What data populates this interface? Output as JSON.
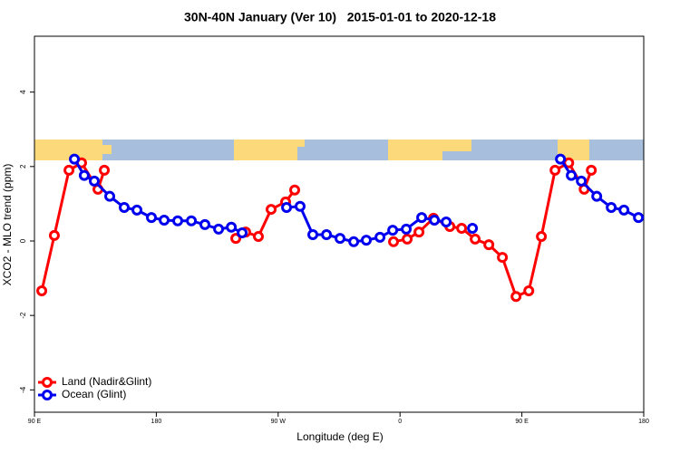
{
  "chart_data": {
    "type": "line",
    "title": "30N-40N January (Ver 10)   2015-01-01 to 2020-12-18",
    "x_label": "Longitude (deg E)",
    "y_label": "XCO2 - MLO trend (ppm)",
    "xlim": [
      90,
      540
    ],
    "xticks": [
      {
        "value": 90,
        "label": "90 E"
      },
      {
        "value": 180,
        "label": "180"
      },
      {
        "value": 270,
        "label": "90 W"
      },
      {
        "value": 360,
        "label": "0"
      },
      {
        "value": 450,
        "label": "90 E"
      },
      {
        "value": 540,
        "label": "180"
      }
    ],
    "ylim": [
      -4.6,
      5.5
    ],
    "yticks": [
      -4,
      -2,
      0,
      2,
      4
    ],
    "legend": "bottom-left",
    "series": [
      {
        "name": "Land (Nadir&Glint)",
        "color": "#ff0000",
        "x": [
          95.4,
          104.7,
          115.5,
          124.8,
          136.9,
          141.6,
          null,
          238.7,
          246,
          255.4,
          264.8,
          275.5,
          282.2,
          null,
          355.2,
          365.3,
          374,
          384.7,
          396.8,
          405.5,
          415.5,
          425.6,
          435.6,
          445.7,
          455.1,
          464.4,
          474.5,
          484.6,
          496,
          501.3
        ],
        "values": [
          -1.34,
          0.15,
          1.9,
          2.1,
          1.39,
          1.9,
          null,
          0.07,
          0.24,
          0.12,
          0.85,
          1.05,
          1.37,
          null,
          -0.02,
          0.05,
          0.24,
          0.61,
          0.39,
          0.34,
          0.05,
          -0.1,
          -0.44,
          -1.49,
          -1.34,
          0.12,
          1.9,
          2.1,
          1.39,
          1.9
        ]
      },
      {
        "name": "Ocean (Glint)",
        "color": "#0000ee",
        "x": [
          119.5,
          126.8,
          134.2,
          145.6,
          156.3,
          165.7,
          176.4,
          185.8,
          195.8,
          205.9,
          215.9,
          226,
          235.4,
          243.4,
          null,
          276.2,
          286.2,
          295.6,
          305.7,
          315.7,
          325.8,
          335.1,
          345.2,
          354.6,
          364.6,
          376,
          385.4,
          394.1,
          null,
          413.5,
          null,
          478.5,
          486.5,
          493.9,
          505.3,
          516,
          525.4,
          536.1
        ],
        "values": [
          2.2,
          1.76,
          1.61,
          1.2,
          0.9,
          0.83,
          0.63,
          0.56,
          0.54,
          0.54,
          0.44,
          0.32,
          0.37,
          0.22,
          null,
          0.9,
          0.93,
          0.17,
          0.17,
          0.07,
          -0.02,
          0.02,
          0.1,
          0.29,
          0.32,
          0.63,
          0.56,
          0.51,
          null,
          0.34,
          null,
          2.2,
          1.76,
          1.61,
          1.2,
          0.9,
          0.83,
          0.63
        ]
      }
    ]
  }
}
